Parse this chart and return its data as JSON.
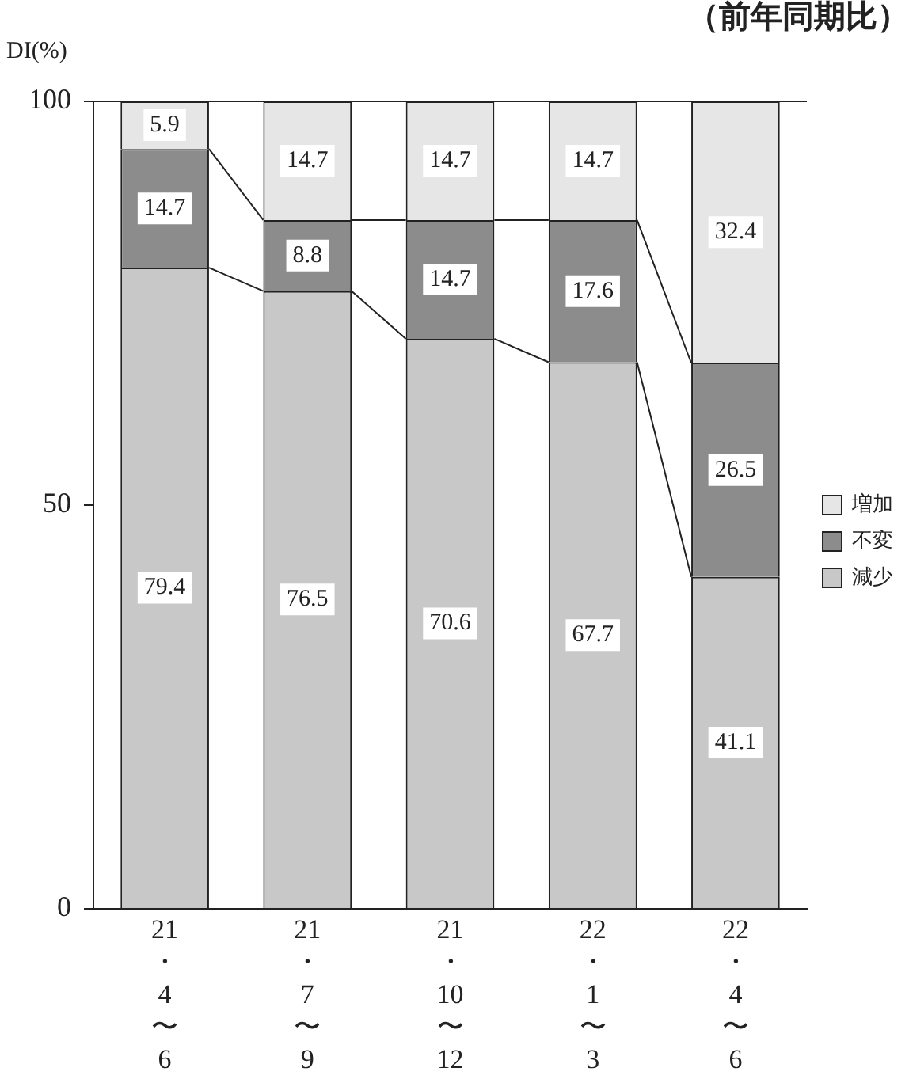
{
  "chart_data": {
    "type": "bar",
    "title": "（前年同期比）",
    "ylabel": "DI(%)",
    "categories": [
      "21・4〜6",
      "21・7〜9",
      "21・10〜12",
      "22・1〜3",
      "22・4〜6"
    ],
    "stacked": true,
    "series": [
      {
        "name": "減少",
        "color": "#c8c8c8",
        "values": [
          79.4,
          76.5,
          70.6,
          67.7,
          41.1
        ]
      },
      {
        "name": "不変",
        "color": "#8c8c8c",
        "values": [
          14.7,
          8.8,
          14.7,
          17.6,
          26.5
        ]
      },
      {
        "name": "増加",
        "color": "#e6e6e6",
        "values": [
          5.9,
          14.7,
          14.7,
          14.7,
          32.4
        ]
      }
    ],
    "ylim": [
      0,
      100
    ],
    "yticks": [
      0,
      50,
      100
    ],
    "grid": false,
    "legend": "right",
    "data_labels": true
  }
}
